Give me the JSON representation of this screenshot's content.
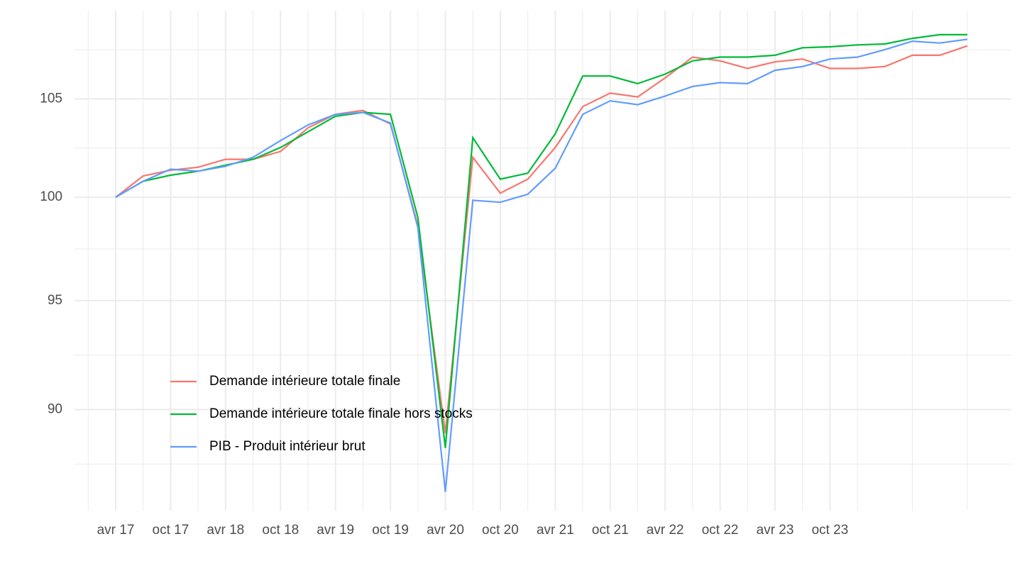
{
  "chart_data": {
    "type": "line",
    "categories": [
      "avr 17",
      null,
      "oct 17",
      null,
      "avr 18",
      null,
      "oct 18",
      null,
      "avr 19",
      null,
      "oct 19",
      null,
      "avr 20",
      null,
      "oct 20",
      null,
      "avr 21",
      null,
      "oct 21",
      null,
      "avr 22",
      null,
      "oct 22",
      null,
      "avr 23",
      null,
      "oct 23",
      null,
      null,
      null,
      null,
      null
    ],
    "series": [
      {
        "name": "Demande intérieure totale finale",
        "color": "#f8766d",
        "values": [
          100,
          101.06,
          101.35,
          101.5,
          101.9,
          101.9,
          102.3,
          103.5,
          104.2,
          104.4,
          103.7,
          98.6,
          88.95,
          102.0,
          100.2,
          100.9,
          102.5,
          104.6,
          105.3,
          105.1,
          106.1,
          107.2,
          107.0,
          106.6,
          106.95,
          107.1,
          106.6,
          106.6,
          106.7,
          107.3,
          107.3,
          107.8
        ]
      },
      {
        "name": "Demande intérieure totale finale hors stocks",
        "color": "#00ba38",
        "values": [
          100,
          100.8,
          101.1,
          101.3,
          101.6,
          101.9,
          102.5,
          103.3,
          104.1,
          104.3,
          104.2,
          99.0,
          88.3,
          103.0,
          100.9,
          101.2,
          103.2,
          106.2,
          106.2,
          105.8,
          106.3,
          107.0,
          107.2,
          107.2,
          107.3,
          107.7,
          107.75,
          107.85,
          107.9,
          108.2,
          108.4,
          108.4
        ]
      },
      {
        "name": "PIB - Produit intérieur brut",
        "color": "#619cff",
        "values": [
          100,
          100.8,
          101.4,
          101.3,
          101.55,
          102.0,
          102.85,
          103.65,
          104.2,
          104.3,
          103.75,
          98.5,
          86.4,
          99.85,
          99.75,
          100.15,
          101.45,
          104.2,
          104.9,
          104.7,
          105.15,
          105.65,
          105.85,
          105.8,
          106.5,
          106.7,
          107.1,
          107.2,
          107.6,
          108.05,
          107.95,
          108.15
        ]
      }
    ],
    "ylim": [
      85.6,
      109.7
    ],
    "yticks": [
      90,
      95,
      100,
      105
    ],
    "log_y": true,
    "grid": true,
    "legend": "bottom-left"
  }
}
